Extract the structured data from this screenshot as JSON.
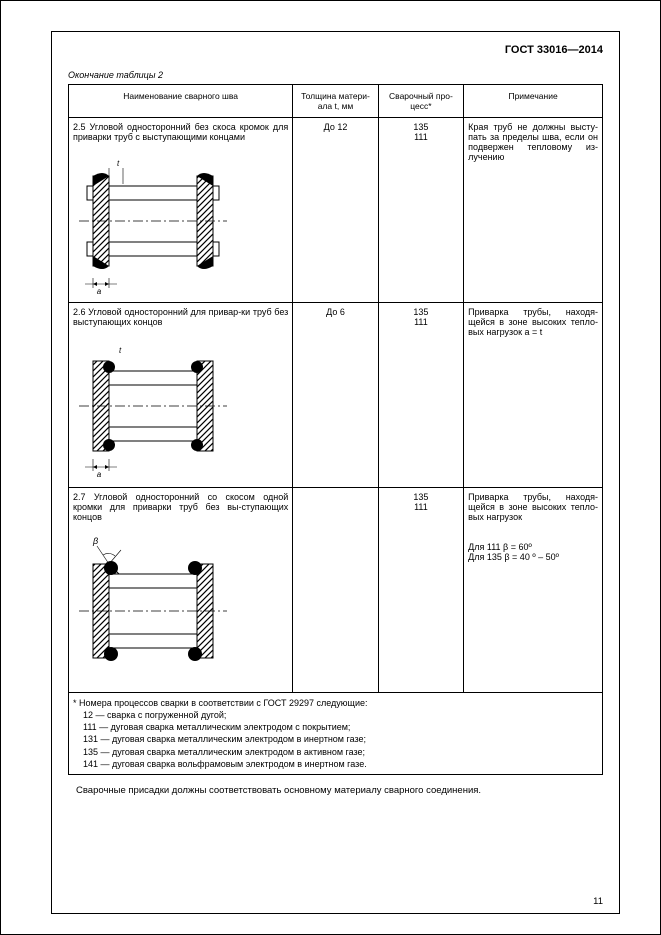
{
  "doc_id": "ГОСТ 33016—2014",
  "caption": "Окончание таблицы 2",
  "headers": {
    "name": "Наименование сварного шва",
    "thickness": "Толщина матери-\nала t, мм",
    "process": "Сварочный про-\nцесс*",
    "note": "Примечание"
  },
  "rows": [
    {
      "title": "2.5 Угловой односторонний без скоса кромок для приварки труб с выступающими концами",
      "thickness": "До 12",
      "process": "135\n111",
      "note": "Края труб не должны высту-пать за пределы шва, если он подвержен тепловому из-лучению"
    },
    {
      "title": "2.6 Угловой односторонний для привар-ки труб без выступающих концов",
      "thickness": "До 6",
      "process": "135\n111",
      "note": "Приварка трубы, находя-щейся в зоне высоких тепло-вых нагрузок a = t"
    },
    {
      "title": "2.7 Угловой односторонний со скосом одной кромки для приварки труб без вы-ступающих концов",
      "thickness": "",
      "process": "135\n111",
      "note": "Приварка трубы, находя-щейся в зоне высоких тепло-вых нагрузок\n\nДля 111 β = 60º\nДля 135 β = 40 º – 50º"
    }
  ],
  "footnote": {
    "intro": "* Номера процессов сварки в соответствии с ГОСТ 29297 следующие:",
    "lines": [
      "12 — сварка с погруженной дугой;",
      "111 — дуговая сварка металлическим электродом с покрытием;",
      "131 — дуговая сварка металлическим электродом в инертном газе;",
      "135 — дуговая сварка металлическим электродом в активном газе;",
      "141 — дуговая сварка вольфрамовым электродом в инертном газе."
    ]
  },
  "bottom_text": "Сварочные присадки должны соответствовать основному материалу сварного соединения.",
  "page_number": "11",
  "colors": {
    "border": "#000000",
    "hatch": "#000000",
    "weld": "#000000",
    "bg": "#ffffff"
  }
}
